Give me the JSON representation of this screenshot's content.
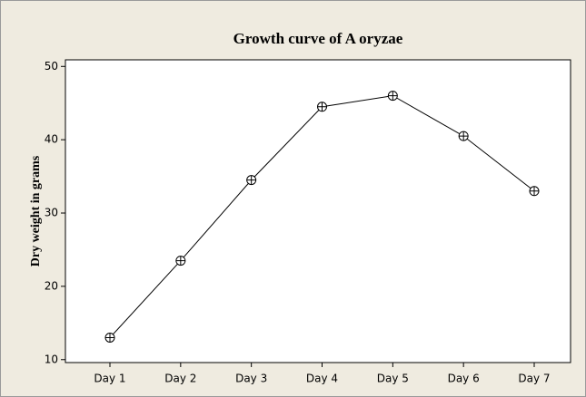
{
  "chart_data": {
    "type": "line",
    "title": "Growth curve of A oryzae",
    "y_label": "Dry weight in grams",
    "categories": [
      "Day 1",
      "Day 2",
      "Day 3",
      "Day 4",
      "Day 5",
      "Day 6",
      "Day 7"
    ],
    "values": [
      13,
      23.5,
      34.5,
      44.5,
      46,
      40.5,
      33
    ],
    "color": "#000000",
    "ylim": [
      9.6,
      50.9
    ],
    "yticks": [
      10,
      20,
      30,
      40,
      50
    ],
    "grid": false
  }
}
